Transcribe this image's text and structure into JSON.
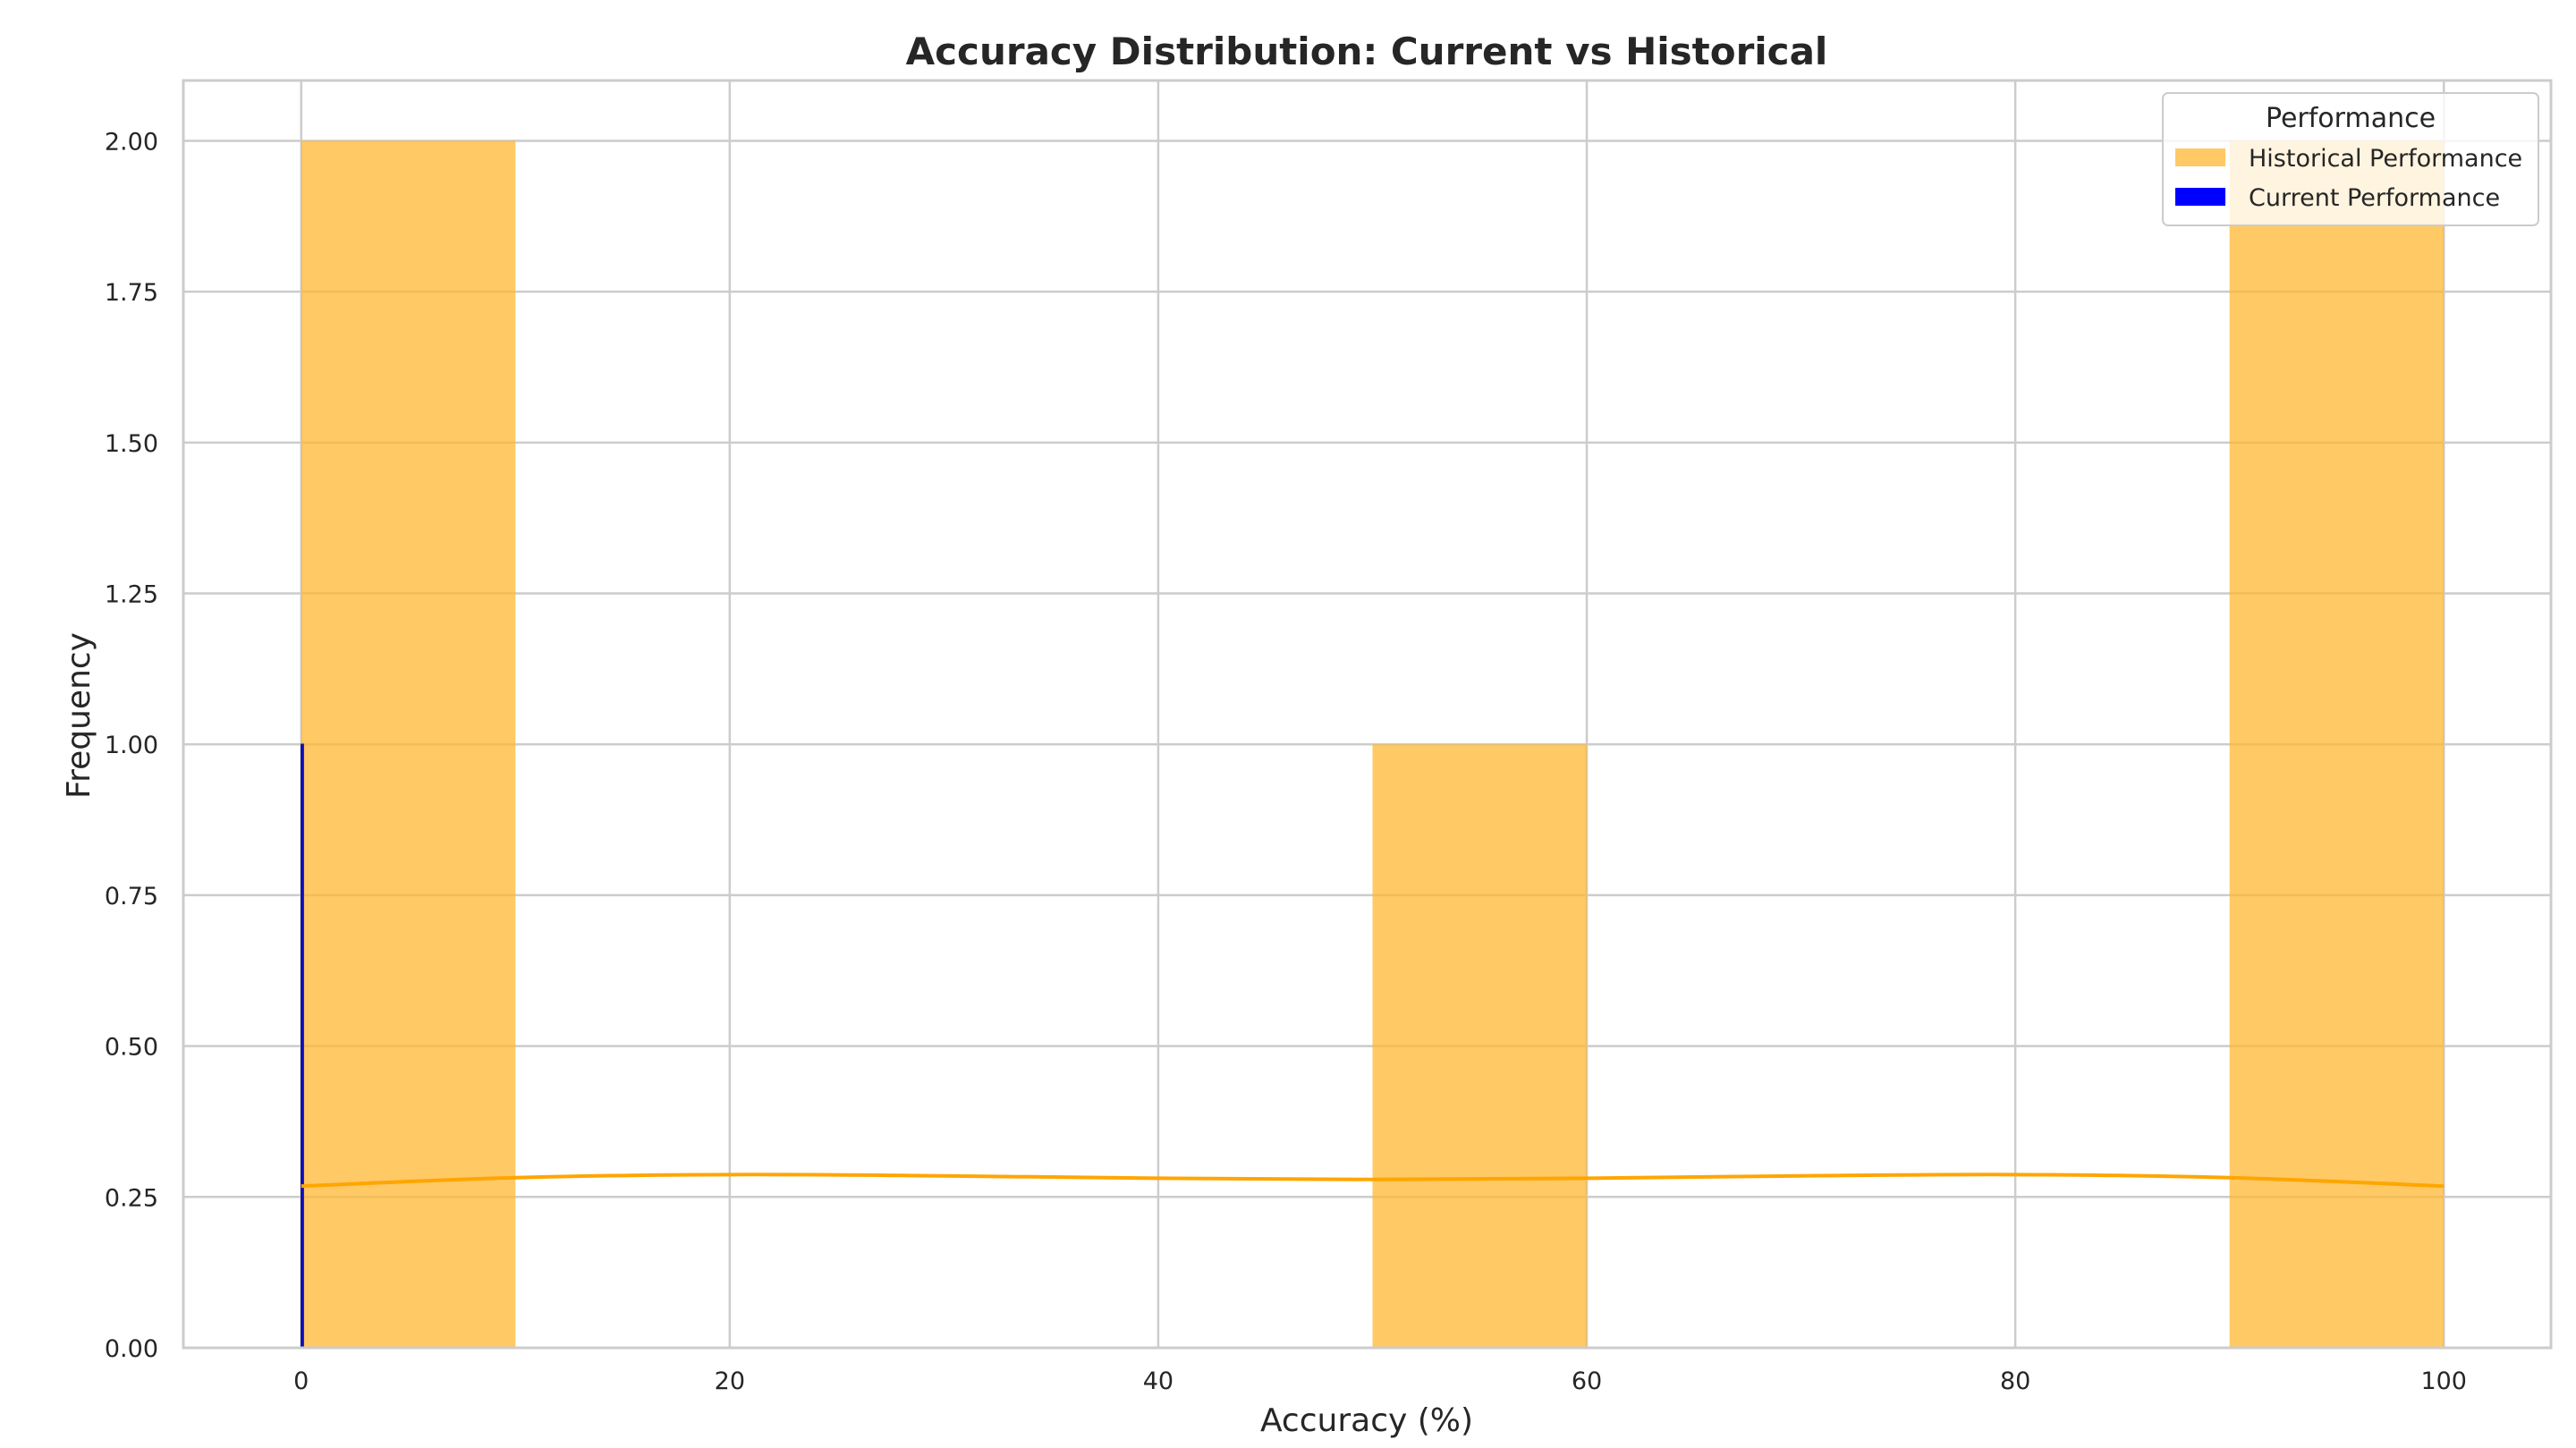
{
  "chart_data": {
    "type": "bar",
    "title": "Accuracy Distribution: Current vs Historical",
    "xlabel": "Accuracy (%)",
    "ylabel": "Frequency",
    "xlim": [
      -5.5,
      105
    ],
    "ylim": [
      0,
      2.1
    ],
    "x_ticks": [
      0,
      20,
      40,
      60,
      80,
      100
    ],
    "y_ticks": [
      0.0,
      0.25,
      0.5,
      0.75,
      1.0,
      1.25,
      1.5,
      1.75,
      2.0
    ],
    "x_tick_labels": [
      "0",
      "20",
      "40",
      "60",
      "80",
      "100"
    ],
    "y_tick_labels": [
      "0.00",
      "0.25",
      "0.50",
      "0.75",
      "1.00",
      "1.25",
      "1.50",
      "1.75",
      "2.00"
    ],
    "grid": true,
    "legend": {
      "title": "Performance",
      "placement": "top-right",
      "entries": [
        "Historical Performance",
        "Current Performance"
      ]
    },
    "series": [
      {
        "name": "Historical Performance",
        "kind": "histogram",
        "color": "#ffb732",
        "bins": [
          {
            "x0": 0,
            "x1": 10,
            "count": 2
          },
          {
            "x0": 50,
            "x1": 60,
            "count": 1
          },
          {
            "x0": 90,
            "x1": 100,
            "count": 2
          }
        ],
        "kde": {
          "color": "#ffa500",
          "x": [
            0,
            10,
            20,
            30,
            40,
            50,
            60,
            70,
            80,
            90,
            100
          ],
          "y": [
            0.268,
            0.282,
            0.287,
            0.285,
            0.281,
            0.279,
            0.281,
            0.285,
            0.287,
            0.282,
            0.268
          ]
        }
      },
      {
        "name": "Current Performance",
        "kind": "histogram",
        "color": "#0000ff",
        "bins": [
          {
            "x0": 0,
            "x1": 0.1,
            "count": 1
          }
        ]
      }
    ]
  }
}
